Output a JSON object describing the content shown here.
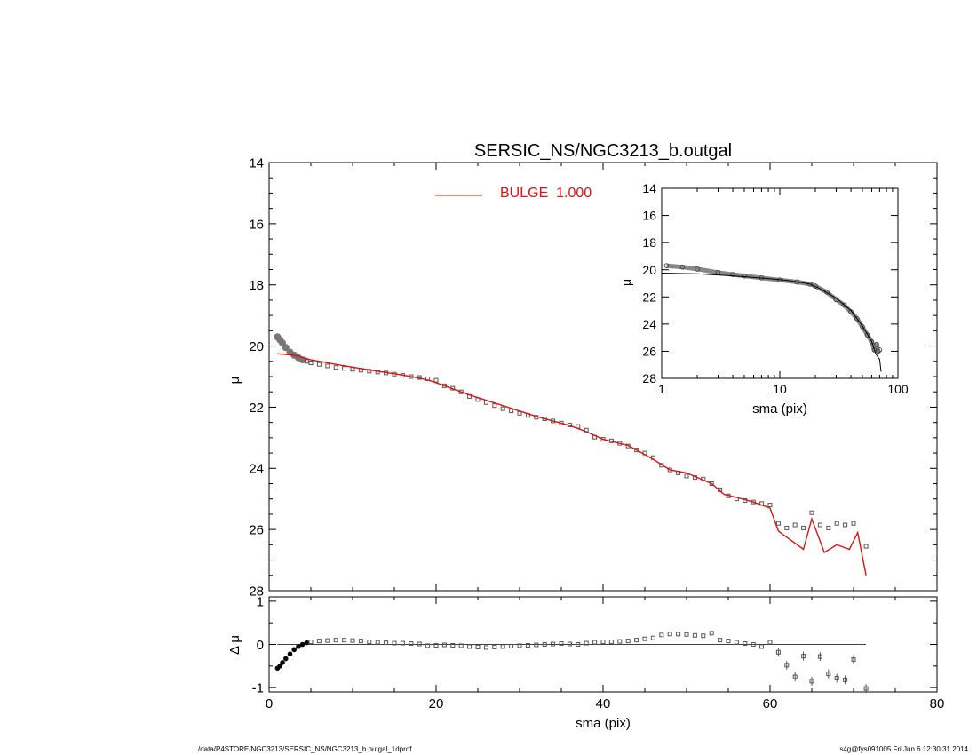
{
  "colors": {
    "model": "#e01010",
    "data": "#555555",
    "axes": "#000000",
    "data_fill": "#777777"
  },
  "footer": {
    "path": "/data/P4STORE/NGC3213/SERSIC_NS/NGC3213_b.outgal_1dprof",
    "stamp": "s4g@fys091005  Fri Jun  6 12:30:31 2014"
  },
  "chart_data": [
    {
      "id": "main",
      "type": "scatter",
      "title": "SERSIC_NS/NGC3213_b.outgal",
      "xlabel": "",
      "ylabel": "μ",
      "xlim": [
        0,
        80
      ],
      "ylim": [
        28,
        14
      ],
      "x_ticks": [
        0,
        20,
        40,
        60,
        80
      ],
      "y_ticks": [
        14,
        16,
        18,
        20,
        22,
        24,
        26,
        28
      ],
      "legend": {
        "position": "top-center",
        "entries": [
          {
            "label": "BULGE  1.000",
            "color": "#e01010"
          }
        ]
      },
      "series": [
        {
          "name": "data",
          "kind": "points",
          "x": [
            1.0,
            1.3,
            1.6,
            2.0,
            2.5,
            3.0,
            3.5,
            4.0,
            4.5,
            5.0,
            6.0,
            7.0,
            8.0,
            9.0,
            10.0,
            11.0,
            12.0,
            13.0,
            14.0,
            15.0,
            16.0,
            17.0,
            18.0,
            19.0,
            20.0,
            21.0,
            22.0,
            23.0,
            24.0,
            25.0,
            26.0,
            27.0,
            28.0,
            29.0,
            30.0,
            31.0,
            32.0,
            33.0,
            34.0,
            35.0,
            36.0,
            37.0,
            38.0,
            39.0,
            40.0,
            41.0,
            42.0,
            43.0,
            44.0,
            45.0,
            46.0,
            47.0,
            48.0,
            49.0,
            50.0,
            51.0,
            52.0,
            53.0,
            54.0,
            55.0,
            56.0,
            57.0,
            58.0,
            59.0,
            60.0,
            61.0,
            62.0,
            63.0,
            64.0,
            65.0,
            66.0,
            67.0,
            68.0,
            69.0,
            70.0,
            71.5
          ],
          "y": [
            19.7,
            19.8,
            19.9,
            20.05,
            20.2,
            20.3,
            20.38,
            20.45,
            20.5,
            20.55,
            20.6,
            20.65,
            20.7,
            20.73,
            20.76,
            20.79,
            20.82,
            20.85,
            20.88,
            20.92,
            20.96,
            21.0,
            21.03,
            21.07,
            21.12,
            21.3,
            21.38,
            21.5,
            21.65,
            21.75,
            21.85,
            21.95,
            22.05,
            22.12,
            22.2,
            22.27,
            22.33,
            22.38,
            22.45,
            22.52,
            22.58,
            22.63,
            22.75,
            22.98,
            23.05,
            23.1,
            23.18,
            23.27,
            23.4,
            23.5,
            23.65,
            23.9,
            24.05,
            24.15,
            24.25,
            24.3,
            24.35,
            24.5,
            24.7,
            24.9,
            25.0,
            25.05,
            25.1,
            25.15,
            25.2,
            25.8,
            25.95,
            25.85,
            25.95,
            25.45,
            25.85,
            25.95,
            25.8,
            25.85,
            25.8,
            26.55
          ]
        },
        {
          "name": "BULGE  1.000",
          "kind": "line",
          "x": [
            1.0,
            3.0,
            5.0,
            8.0,
            12.0,
            16.0,
            18.0,
            19.5,
            21.0,
            24.0,
            28.0,
            32.0,
            36.0,
            38.0,
            40.0,
            43.0,
            46.0,
            48.0,
            50.0,
            53.0,
            54.5,
            56.0,
            58.0,
            60.0,
            61.0,
            62.5,
            64.0,
            65.0,
            66.5,
            68.0,
            69.5,
            70.5,
            71.5
          ],
          "y": [
            20.25,
            20.3,
            20.45,
            20.6,
            20.78,
            20.95,
            21.05,
            21.15,
            21.3,
            21.6,
            21.95,
            22.3,
            22.6,
            22.8,
            23.05,
            23.25,
            23.7,
            24.05,
            24.15,
            24.5,
            24.85,
            24.95,
            25.1,
            25.3,
            26.05,
            26.35,
            26.65,
            25.65,
            26.75,
            26.5,
            26.65,
            26.1,
            27.5
          ]
        }
      ]
    },
    {
      "id": "inset",
      "type": "line",
      "title": "",
      "xlabel": "sma (pix)",
      "ylabel": "μ",
      "x_scale": "log",
      "xlim": [
        1,
        100
      ],
      "ylim": [
        28,
        14
      ],
      "x_ticks": [
        1,
        10,
        100
      ],
      "y_ticks": [
        14,
        16,
        18,
        20,
        22,
        24,
        26,
        28
      ],
      "series": [
        {
          "name": "data",
          "kind": "points",
          "x": [
            1.1,
            1.5,
            2.0,
            3.0,
            4.0,
            5.0,
            7.0,
            10.0,
            14.0,
            18.0,
            20.0,
            25.0,
            30.0,
            35.0,
            40.0,
            45.0,
            50.0,
            55.0,
            60.0,
            63.0,
            66.0,
            68.0,
            70.0
          ],
          "y": [
            19.7,
            19.8,
            19.95,
            20.2,
            20.35,
            20.45,
            20.6,
            20.75,
            20.9,
            21.05,
            21.2,
            21.65,
            22.2,
            22.6,
            23.1,
            23.6,
            24.2,
            24.8,
            25.3,
            25.9,
            25.5,
            26.0,
            25.9
          ]
        },
        {
          "name": "model",
          "kind": "line",
          "x": [
            1.0,
            2.0,
            4.0,
            8.0,
            12.0,
            18.0,
            22.0,
            30.0,
            40.0,
            50.0,
            60.0,
            65.0,
            70.0,
            72.0
          ],
          "y": [
            20.25,
            20.3,
            20.45,
            20.65,
            20.8,
            21.05,
            21.4,
            22.1,
            23.0,
            24.15,
            25.3,
            26.2,
            26.6,
            27.5
          ]
        }
      ]
    },
    {
      "id": "residual",
      "type": "scatter",
      "title": "",
      "xlabel": "sma (pix)",
      "ylabel": "Δ μ",
      "xlim": [
        0,
        80
      ],
      "ylim": [
        -1.1,
        1.1
      ],
      "x_ticks": [
        0,
        20,
        40,
        60,
        80
      ],
      "y_ticks": [
        -1,
        0,
        1
      ],
      "series": [
        {
          "name": "residual",
          "kind": "points",
          "x": [
            1.0,
            1.3,
            1.6,
            2.0,
            2.5,
            3.0,
            3.5,
            4.0,
            4.5,
            5.0,
            6.0,
            7.0,
            8.0,
            9.0,
            10.0,
            11.0,
            12.0,
            13.0,
            14.0,
            15.0,
            16.0,
            17.0,
            18.0,
            19.0,
            20.0,
            21.0,
            22.0,
            23.0,
            24.0,
            25.0,
            26.0,
            27.0,
            28.0,
            29.0,
            30.0,
            31.0,
            32.0,
            33.0,
            34.0,
            35.0,
            36.0,
            37.0,
            38.0,
            39.0,
            40.0,
            41.0,
            42.0,
            43.0,
            44.0,
            45.0,
            46.0,
            47.0,
            48.0,
            49.0,
            50.0,
            51.0,
            52.0,
            53.0,
            54.0,
            55.0,
            56.0,
            57.0,
            58.0,
            59.0,
            60.0,
            61.0,
            62.0,
            63.0,
            64.0,
            65.0,
            66.0,
            67.0,
            68.0,
            69.0,
            70.0,
            71.5
          ],
          "y": [
            -0.55,
            -0.5,
            -0.42,
            -0.33,
            -0.22,
            -0.12,
            -0.05,
            0.0,
            0.04,
            0.06,
            0.08,
            0.09,
            0.1,
            0.1,
            0.09,
            0.08,
            0.06,
            0.05,
            0.04,
            0.03,
            0.03,
            0.02,
            0.01,
            -0.03,
            -0.02,
            -0.01,
            -0.02,
            -0.03,
            -0.05,
            -0.06,
            -0.07,
            -0.06,
            -0.05,
            -0.04,
            -0.03,
            -0.02,
            -0.01,
            0.0,
            0.01,
            0.02,
            0.01,
            0.0,
            0.03,
            0.05,
            0.06,
            0.06,
            0.07,
            0.08,
            0.1,
            0.13,
            0.15,
            0.22,
            0.24,
            0.24,
            0.23,
            0.21,
            0.2,
            0.26,
            0.1,
            0.08,
            0.05,
            0.02,
            0.0,
            -0.05,
            0.05,
            -0.18,
            -0.48,
            -0.75,
            -0.27,
            -0.85,
            -0.28,
            -0.68,
            -0.78,
            -0.82,
            -0.35,
            -1.02
          ]
        }
      ]
    }
  ]
}
